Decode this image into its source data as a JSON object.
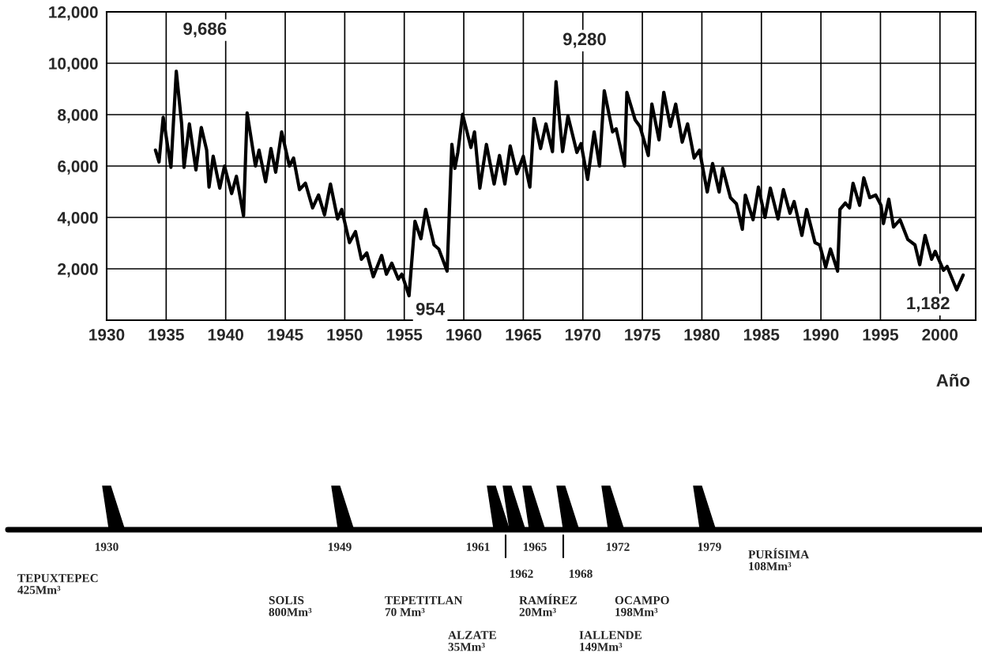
{
  "chart_data": {
    "type": "line",
    "xlabel": "Año",
    "xlim": [
      1930,
      2003
    ],
    "xticks": [
      1930,
      1935,
      1940,
      1945,
      1950,
      1955,
      1960,
      1965,
      1970,
      1975,
      1980,
      1985,
      1990,
      1995,
      2000
    ],
    "ylim": [
      0,
      12000
    ],
    "yticks": [
      {
        "value": 0,
        "label": null
      },
      {
        "value": 2000,
        "label": "2,000"
      },
      {
        "value": 4000,
        "label": "4,000"
      },
      {
        "value": 6000,
        "label": "6,000"
      },
      {
        "value": 8000,
        "label": "8,000"
      },
      {
        "value": 10000,
        "label": "10,000"
      },
      {
        "value": 12000,
        "label": "12,000"
      }
    ],
    "grid": true,
    "marker": "none",
    "line_style": "solid",
    "series": [
      {
        "color": "#000000",
        "x": [
          1934.1,
          1934.4,
          1934.75,
          1935.4,
          1935.85,
          1936.3,
          1936.5,
          1936.95,
          1937.5,
          1937.95,
          1938.4,
          1938.6,
          1938.95,
          1939.5,
          1939.9,
          1940.5,
          1940.9,
          1941.5,
          1941.8,
          1942.5,
          1942.8,
          1943.35,
          1943.8,
          1944.2,
          1944.7,
          1945.35,
          1945.7,
          1946.2,
          1946.7,
          1947.3,
          1947.8,
          1948.3,
          1948.8,
          1949.4,
          1949.75,
          1950.4,
          1950.9,
          1951.4,
          1951.85,
          1952.4,
          1953.1,
          1953.5,
          1953.95,
          1954.5,
          1954.8,
          1955.4,
          1955.9,
          1956.4,
          1956.8,
          1957.5,
          1957.9,
          1958.6,
          1959.0,
          1959.25,
          1959.5,
          1959.9,
          1960.6,
          1960.9,
          1961.35,
          1961.9,
          1962.55,
          1963.0,
          1963.45,
          1963.9,
          1964.45,
          1965.0,
          1965.55,
          1965.9,
          1966.45,
          1966.9,
          1967.45,
          1967.75,
          1968.3,
          1968.75,
          1969.5,
          1969.85,
          1970.4,
          1970.95,
          1971.4,
          1971.8,
          1972.5,
          1972.8,
          1973.5,
          1973.7,
          1974.4,
          1974.8,
          1975.5,
          1975.8,
          1976.4,
          1976.8,
          1977.35,
          1977.8,
          1978.35,
          1978.8,
          1979.35,
          1979.8,
          1980.45,
          1980.9,
          1981.45,
          1981.75,
          1982.4,
          1982.9,
          1983.4,
          1983.65,
          1984.3,
          1984.75,
          1985.3,
          1985.75,
          1986.4,
          1986.85,
          1987.4,
          1987.75,
          1988.4,
          1988.8,
          1989.5,
          1989.9,
          1990.4,
          1990.8,
          1991.4,
          1991.6,
          1992.05,
          1992.4,
          1992.7,
          1993.25,
          1993.6,
          1994.1,
          1994.6,
          1995.05,
          1995.25,
          1995.7,
          1996.1,
          1996.65,
          1997.3,
          1997.9,
          1998.3,
          1998.75,
          1999.3,
          1999.6,
          2000.3,
          2000.6,
          2001.4,
          2001.95
        ],
        "values": [
          6620,
          6160,
          7900,
          5950,
          9686,
          7640,
          5950,
          7640,
          5850,
          7500,
          6620,
          5180,
          6380,
          5140,
          6000,
          4930,
          5600,
          4060,
          8070,
          6000,
          6620,
          5390,
          6680,
          5760,
          7330,
          6000,
          6310,
          5080,
          5330,
          4370,
          4870,
          4100,
          5300,
          3940,
          4310,
          3020,
          3450,
          2370,
          2620,
          1690,
          2520,
          1790,
          2220,
          1600,
          1790,
          954,
          3850,
          3170,
          4310,
          2930,
          2770,
          1910,
          6840,
          5910,
          6530,
          8010,
          6720,
          7330,
          5140,
          6840,
          5300,
          6410,
          5300,
          6780,
          5700,
          6380,
          5180,
          7850,
          6680,
          7640,
          6560,
          9280,
          6560,
          7950,
          6530,
          6870,
          5480,
          7330,
          6000,
          8930,
          7330,
          7450,
          6000,
          8870,
          7790,
          7540,
          6410,
          8410,
          7020,
          8870,
          7540,
          8410,
          6930,
          7640,
          6310,
          6620,
          4990,
          6100,
          4990,
          5910,
          4770,
          4530,
          3540,
          4870,
          3910,
          5180,
          4000,
          5140,
          3940,
          5080,
          4160,
          4620,
          3300,
          4310,
          3020,
          2930,
          2060,
          2770,
          1910,
          4310,
          4560,
          4370,
          5330,
          4470,
          5540,
          4770,
          4870,
          4470,
          3760,
          4710,
          3630,
          3910,
          3140,
          2930,
          2160,
          3300,
          2370,
          2680,
          1940,
          2090,
          1182,
          1760
        ]
      }
    ],
    "annotations": [
      {
        "text": "9,686",
        "x": 1935.85,
        "y": 9686
      },
      {
        "text": "9,280",
        "x": 1967.75,
        "y": 9280
      },
      {
        "text": "954",
        "x": 1955.4,
        "y": 954
      },
      {
        "text": "1,182",
        "x": 2001.4,
        "y": 1182
      },
      "1930",
      "1949",
      "1961",
      "1962",
      "1965",
      "1968",
      "1972",
      "1979",
      "TEPUXTEPEC\n425Mm³",
      "SOLIS\n800Mm³",
      "TEPETITLAN\n70 Mm³",
      "ALZATE\n35Mm³",
      "RAMÍREZ\n20Mm³",
      "IALLENDE\n149Mm³",
      "OCAMPO\n198Mm³",
      "PURÍSIMA\n108Mm³"
    ]
  }
}
